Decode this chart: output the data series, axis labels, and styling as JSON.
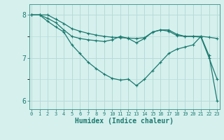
{
  "xlabel": "Humidex (Indice chaleur)",
  "x_values": [
    0,
    1,
    2,
    3,
    4,
    5,
    6,
    7,
    8,
    9,
    10,
    11,
    12,
    13,
    14,
    15,
    16,
    17,
    18,
    19,
    20,
    21,
    22,
    23
  ],
  "series": [
    [
      8.0,
      8.0,
      8.0,
      7.9,
      7.8,
      7.68,
      7.62,
      7.57,
      7.53,
      7.5,
      7.48,
      7.47,
      7.46,
      7.45,
      7.47,
      7.6,
      7.65,
      7.65,
      7.55,
      7.5,
      7.5,
      7.5,
      7.48,
      7.45
    ],
    [
      8.0,
      8.0,
      7.92,
      7.82,
      7.65,
      7.5,
      7.45,
      7.42,
      7.4,
      7.38,
      7.42,
      7.5,
      7.45,
      7.35,
      7.45,
      7.6,
      7.65,
      7.62,
      7.52,
      7.5,
      7.5,
      7.48,
      7.0,
      6.5
    ],
    [
      8.0,
      8.0,
      7.85,
      7.72,
      7.6,
      7.3,
      7.1,
      6.9,
      6.75,
      6.62,
      6.52,
      6.48,
      6.5,
      6.35,
      6.5,
      6.7,
      6.9,
      7.1,
      7.2,
      7.25,
      7.3,
      7.5,
      7.05,
      6.0
    ]
  ],
  "line_color": "#1a7a6e",
  "line_width": 1.0,
  "marker": "+",
  "marker_size": 3,
  "bg_color": "#d6f0ee",
  "grid_color": "#b8dbd8",
  "ylim": [
    5.8,
    8.25
  ],
  "yticks": [
    6,
    7,
    8
  ],
  "xlim": [
    -0.3,
    23.3
  ]
}
